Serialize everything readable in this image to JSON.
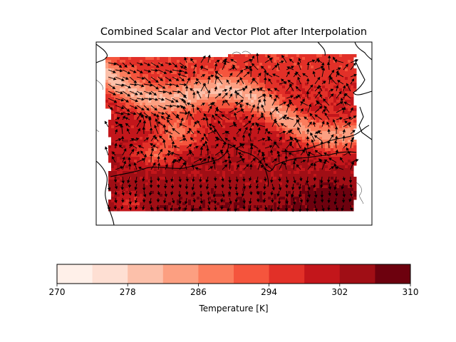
{
  "chart_data": {
    "type": "heatmap",
    "subtype": "filled-contour with vector quiver overlay on map",
    "title": "Combined Scalar and Vector Plot after Interpolation",
    "colorbar": {
      "label": "Temperature [K]",
      "levels": [
        270,
        274,
        278,
        282,
        286,
        290,
        294,
        298,
        302,
        306,
        310
      ],
      "tick_values": [
        270,
        278,
        286,
        294,
        302,
        310
      ],
      "tick_labels": [
        "270",
        "278",
        "286",
        "294",
        "302",
        "310"
      ],
      "colors": [
        "#fff0e9",
        "#fedfd3",
        "#fcc0aa",
        "#fc9f81",
        "#fb7c5c",
        "#f5553d",
        "#e23028",
        "#c3161b",
        "#a00e15",
        "#6d010e"
      ],
      "range": [
        270,
        310
      ]
    },
    "field": {
      "variable": "Temperature",
      "units": "K",
      "approx_range": [
        276,
        306
      ],
      "description": "interpolated temperature field, cooler (lighter) along central ridge band, warmest (darkest) in lower-right region"
    },
    "vectors": {
      "type": "quiver",
      "color": "#000000"
    },
    "map": {
      "features": [
        "coastlines",
        "country borders"
      ]
    }
  },
  "colors": {
    "frame": "#000000",
    "arrow": "#000000"
  }
}
